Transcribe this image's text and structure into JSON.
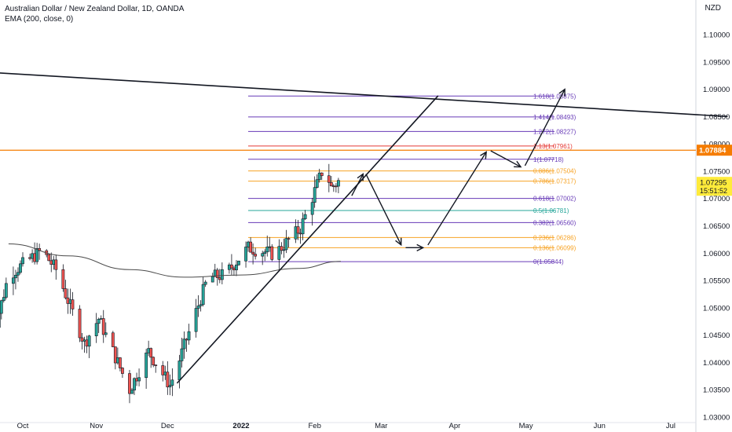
{
  "header": {
    "title": "Australian Dollar / New Zealand Dollar, 1D, OANDA",
    "indicator": "EMA (200, close, 0)"
  },
  "price_axis": {
    "currency": "NZD",
    "ticks": [
      "1.10000",
      "1.09500",
      "1.09000",
      "1.08500",
      "1.08000",
      "1.07500",
      "1.07000",
      "1.06500",
      "1.06000",
      "1.05500",
      "1.05000",
      "1.04500",
      "1.04000",
      "1.03500",
      "1.03000"
    ]
  },
  "time_axis": {
    "ticks": [
      "Oct",
      "Nov",
      "Dec",
      "2022",
      "Feb",
      "Mar",
      "Apr",
      "May",
      "Jun",
      "Jul"
    ]
  },
  "badges": {
    "horizontal_line_price": "1.07884",
    "last_price": "1.07295",
    "countdown": "15:51:52"
  },
  "chart_data": {
    "type": "candlestick",
    "instrument": "AUDNZD",
    "timeframe": "1D",
    "ylim": [
      1.03,
      1.1045
    ],
    "ema200_points": [
      {
        "x": "2021-09-25",
        "y": 1.0617
      },
      {
        "x": "2021-10-20",
        "y": 1.0595
      },
      {
        "x": "2021-11-15",
        "y": 1.057
      },
      {
        "x": "2021-12-08",
        "y": 1.0556
      },
      {
        "x": "2022-01-01",
        "y": 1.056
      },
      {
        "x": "2022-01-25",
        "y": 1.0572
      },
      {
        "x": "2022-02-12",
        "y": 1.0585
      }
    ],
    "fibonacci": {
      "line_colors": {
        "purple": "#673ab7",
        "orange": "#f7a325",
        "red": "#e53935",
        "teal": "#26a69a"
      },
      "levels": [
        {
          "label": "1.618(1.08875)",
          "price": 1.08875,
          "color": "#673ab7"
        },
        {
          "label": "1.414(1.08493)",
          "price": 1.08493,
          "color": "#673ab7"
        },
        {
          "label": "1.272(1.08227)",
          "price": 1.08227,
          "color": "#673ab7"
        },
        {
          "label": "1.13(1.07961)",
          "price": 1.07961,
          "color": "#e53935"
        },
        {
          "label": "1(1.07718)",
          "price": 1.07718,
          "color": "#673ab7"
        },
        {
          "label": "0.886(1.07504)",
          "price": 1.07504,
          "color": "#f7a325"
        },
        {
          "label": "0.786(1.07317)",
          "price": 1.07317,
          "color": "#f7a325"
        },
        {
          "label": "0.618(1.07002)",
          "price": 1.07002,
          "color": "#673ab7"
        },
        {
          "label": "0.5(1.06781)",
          "price": 1.06781,
          "color": "#26a69a"
        },
        {
          "label": "0.382(1.06560)",
          "price": 1.0656,
          "color": "#673ab7"
        },
        {
          "label": "0.236(1.06286)",
          "price": 1.06286,
          "color": "#f7a325"
        },
        {
          "label": "0.136(1.06099)",
          "price": 1.06099,
          "color": "#f7a325"
        },
        {
          "label": "0(1.05844)",
          "price": 1.05844,
          "color": "#673ab7"
        }
      ]
    },
    "horizontal_line": {
      "price": 1.07884,
      "color": "#f57c00"
    },
    "trendlines": [
      {
        "name": "descending resistance",
        "color": "#131722",
        "from": {
          "x": "2021-09-20",
          "y": 1.093
        },
        "to": {
          "x": "2022-07-25",
          "y": 1.085
        }
      },
      {
        "name": "ascending support",
        "color": "#131722",
        "from": {
          "x": "2021-12-05",
          "y": 1.0362
        },
        "to": {
          "x": "2022-03-25",
          "y": 1.0888
        }
      }
    ],
    "projected_path": [
      {
        "x": "2022-02-16",
        "y": 1.07
      },
      {
        "x": "2022-02-22",
        "y": 1.075
      },
      {
        "x": "2022-03-10",
        "y": 1.061
      },
      {
        "x": "2022-03-20",
        "y": 1.061
      },
      {
        "x": "2022-04-15",
        "y": 1.079
      },
      {
        "x": "2022-04-30",
        "y": 1.0755
      },
      {
        "x": "2022-05-18",
        "y": 1.0905
      }
    ]
  }
}
